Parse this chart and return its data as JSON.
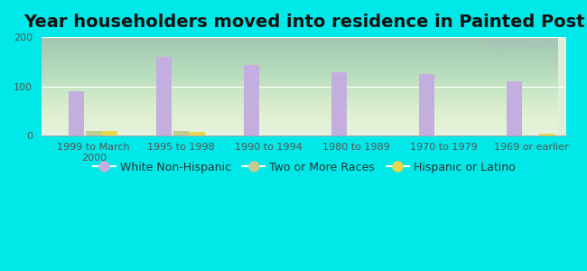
{
  "title": "Year householders moved into residence in Painted Post",
  "categories": [
    "1999 to March\n2000",
    "1995 to 1998",
    "1990 to 1994",
    "1980 to 1989",
    "1970 to 1979",
    "1969 or earlier"
  ],
  "series": {
    "White Non-Hispanic": [
      90,
      160,
      143,
      128,
      125,
      110
    ],
    "Two or More Races": [
      10,
      10,
      0,
      0,
      0,
      0
    ],
    "Hispanic or Latino": [
      10,
      8,
      0,
      0,
      0,
      4
    ]
  },
  "colors": {
    "White Non-Hispanic": "#c4aee0",
    "Two or More Races": "#c0cc90",
    "Hispanic or Latino": "#e8d84a"
  },
  "ylim": [
    0,
    200
  ],
  "yticks": [
    0,
    100,
    200
  ],
  "bar_width": 0.18,
  "background_color": "#00e8e8",
  "watermark": "City-Data.com",
  "title_fontsize": 14,
  "tick_fontsize": 8,
  "legend_fontsize": 9
}
